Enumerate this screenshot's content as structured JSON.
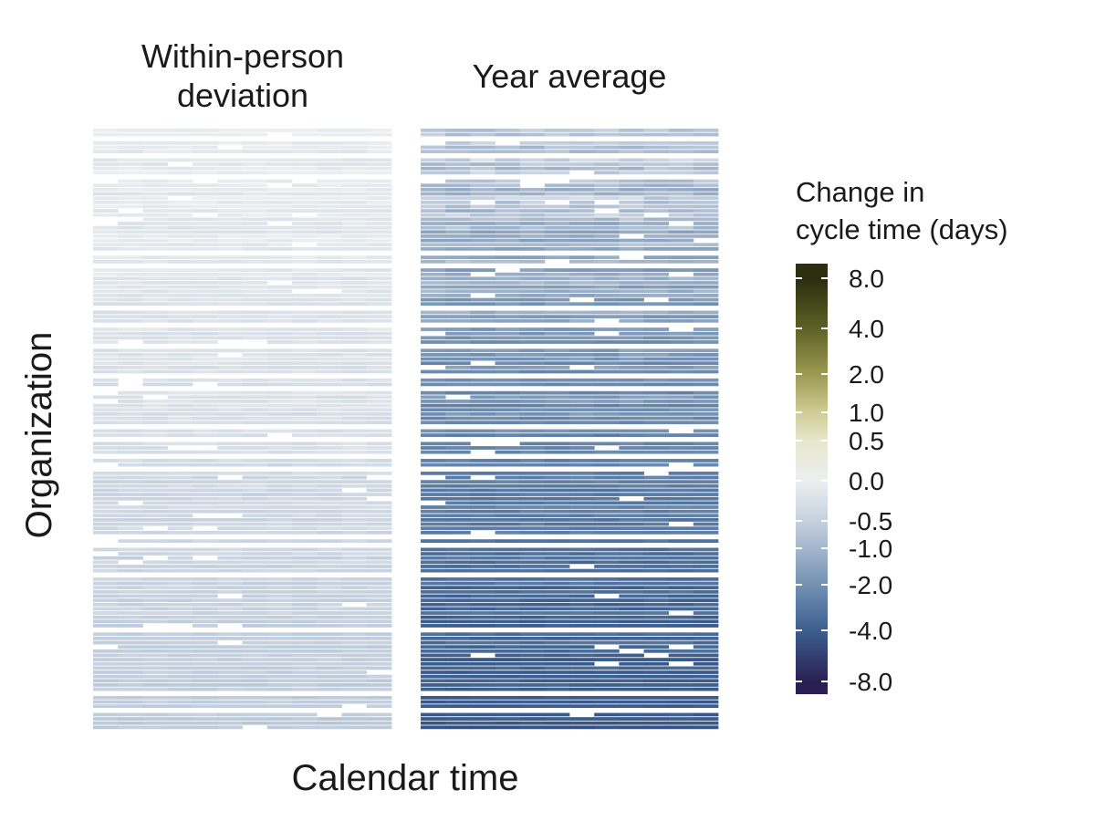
{
  "chart_data": {
    "type": "heatmap",
    "xlabel": "Calendar time",
    "ylabel": "Organization",
    "panels": [
      {
        "name": "Within-person deviation",
        "title_lines": [
          "Within-person",
          "deviation"
        ],
        "mean_range": [
          -0.05,
          -0.6
        ]
      },
      {
        "name": "Year average",
        "title_lines": [
          "Year average"
        ],
        "mean_range": [
          -0.6,
          -4.5
        ]
      }
    ],
    "n_columns": 12,
    "n_rows": 145,
    "legend": {
      "title_lines": [
        "Change in",
        "cycle time (days)"
      ],
      "ticks": [
        "8.0",
        "4.0",
        "2.0",
        "1.0",
        "0.5",
        "0.0",
        "-0.5",
        "-1.0",
        "-2.0",
        "-4.0",
        "-8.0"
      ],
      "tick_values": [
        8.0,
        4.0,
        2.0,
        1.0,
        0.5,
        0.0,
        -0.5,
        -1.0,
        -2.0,
        -4.0,
        -8.0
      ],
      "placement": "right"
    },
    "colors": {
      "pos_8": "#2b2e0f",
      "pos_4": "#5d6125",
      "pos_2": "#9c9a52",
      "pos_1": "#cfcc96",
      "pos_05": "#e8e6cc",
      "zero": "#eceff0",
      "neg_05": "#c5d0de",
      "neg_1": "#a4b6cc",
      "neg_2": "#7391b3",
      "neg_4": "#3c5f8f",
      "neg_8": "#2a1f52"
    },
    "grid": false
  }
}
